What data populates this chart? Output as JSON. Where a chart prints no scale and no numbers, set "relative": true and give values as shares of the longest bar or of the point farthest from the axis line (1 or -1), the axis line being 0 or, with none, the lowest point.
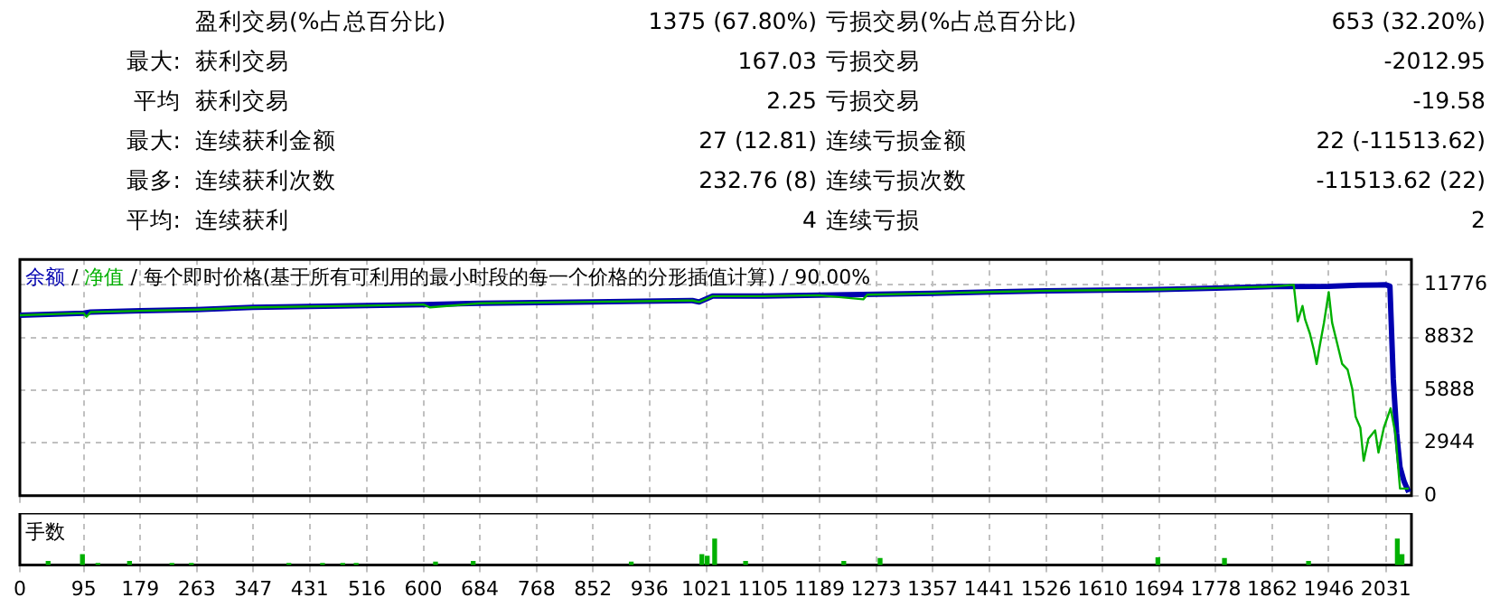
{
  "chart_data": [
    {
      "type": "other",
      "annotations": [
        "盈利交易(%占总百分比)",
        "1375 (67.80%)",
        "亏损交易(%占总百分比)",
        "653 (32.20%)",
        "最大:",
        "获利交易",
        "167.03",
        "亏损交易",
        "-2012.95",
        "平均",
        "获利交易",
        "2.25",
        "亏损交易",
        "-19.58",
        "最大:",
        "连续获利金额",
        "27 (12.81)",
        "连续亏损金额",
        "22 (-11513.62)",
        "最多:",
        "连续获利次数",
        "232.76 (8)",
        "连续亏损次数",
        "-11513.62 (22)",
        "平均:",
        "连续获利",
        "4",
        "连续亏损",
        "2"
      ]
    },
    {
      "type": "line",
      "title": "/ 每个即时价格(基于所有可利用的最小时段的每一个价格的分形插值计算) / 90.00%",
      "annotations": [
        "/"
      ],
      "legend": "top left",
      "grid": true,
      "tick_labels": "y",
      "marker": "none",
      "xlim": [
        0,
        2069
      ],
      "xticks": [
        0,
        95,
        179,
        263,
        347,
        431,
        516,
        600,
        684,
        768,
        852,
        936,
        1021,
        1105,
        1189,
        1273,
        1357,
        1441,
        1526,
        1610,
        1694,
        1778,
        1862,
        1946,
        2031
      ],
      "ylim": [
        0,
        13200
      ],
      "yticks": [
        0,
        2944,
        5888,
        8832,
        11776
      ],
      "series": [
        {
          "name": "余额",
          "color": "#0000b0",
          "x": [
            0,
            95,
            105,
            179,
            263,
            347,
            516,
            600,
            684,
            852,
            1000,
            1010,
            1021,
            1030,
            1105,
            1189,
            1357,
            1441,
            1526,
            1610,
            1694,
            1778,
            1862,
            1946,
            1990,
            2031,
            2037,
            2042,
            2047,
            2052,
            2058,
            2065
          ],
          "values": [
            10080,
            10200,
            10260,
            10330,
            10400,
            10520,
            10620,
            10680,
            10750,
            10830,
            10900,
            10820,
            11000,
            11150,
            11150,
            11200,
            11300,
            11380,
            11450,
            11480,
            11520,
            11600,
            11680,
            11700,
            11760,
            11780,
            11700,
            6500,
            3500,
            1600,
            800,
            200
          ]
        },
        {
          "name": "净值",
          "color": "#00b000",
          "x": [
            0,
            95,
            99,
            105,
            179,
            263,
            347,
            516,
            600,
            610,
            684,
            852,
            1000,
            1010,
            1021,
            1030,
            1105,
            1189,
            1254,
            1260,
            1357,
            1441,
            1526,
            1610,
            1694,
            1778,
            1862,
            1894,
            1900,
            1907,
            1911,
            1918,
            1924,
            1928,
            1933,
            1939,
            1946,
            1951,
            1959,
            1966,
            1974,
            1981,
            1986,
            1993,
            1998,
            2005,
            2015,
            2020,
            2028,
            2038,
            2045,
            2052,
            2065
          ],
          "values": [
            10080,
            10200,
            10000,
            10260,
            10330,
            10400,
            10520,
            10620,
            10680,
            10520,
            10750,
            10830,
            10900,
            10820,
            11000,
            11150,
            11150,
            11200,
            10970,
            11230,
            11300,
            11380,
            11450,
            11480,
            11520,
            11600,
            11680,
            11776,
            9740,
            10600,
            9830,
            9060,
            8130,
            7360,
            8440,
            9670,
            11370,
            9670,
            8440,
            7360,
            7050,
            5970,
            4420,
            3800,
            1950,
            3180,
            3650,
            2410,
            3800,
            4880,
            3490,
            400,
            400
          ]
        }
      ]
    },
    {
      "type": "bar",
      "title": "手数",
      "relative": true,
      "grid": true,
      "tick_labels": "x",
      "color": "#00b000",
      "xlim": [
        0,
        2069
      ],
      "xticks": [
        0,
        95,
        179,
        263,
        347,
        431,
        516,
        600,
        684,
        768,
        852,
        936,
        1021,
        1105,
        1189,
        1273,
        1357,
        1441,
        1526,
        1610,
        1694,
        1778,
        1862,
        1946,
        2031
      ],
      "x": [
        42,
        93,
        116,
        163,
        226,
        255,
        400,
        450,
        480,
        500,
        618,
        674,
        909,
        1014,
        1022,
        1033,
        1079,
        1225,
        1279,
        1692,
        1791,
        1916,
        2048,
        2055
      ],
      "values": [
        0.14,
        0.4,
        0.06,
        0.14,
        0.06,
        0.06,
        0.06,
        0.06,
        0.06,
        0.06,
        0.11,
        0.14,
        0.11,
        0.4,
        0.34,
        1,
        0.14,
        0.14,
        0.25,
        0.28,
        0.25,
        0.14,
        1,
        0.4
      ]
    }
  ]
}
